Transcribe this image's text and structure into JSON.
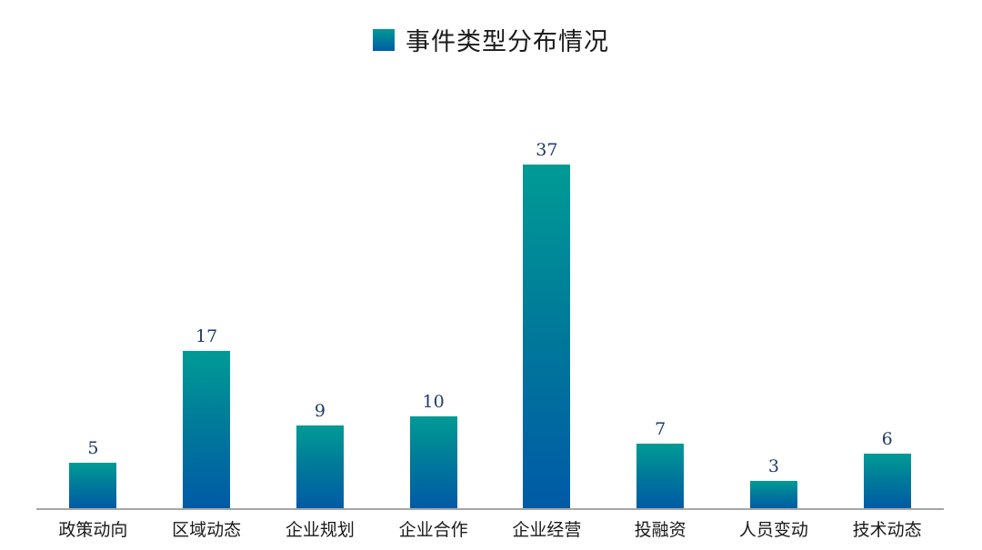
{
  "chart_data": {
    "type": "bar",
    "title": "",
    "legend": [
      "事件类型分布情况"
    ],
    "legend_position": "top",
    "categories": [
      "政策动向",
      "区域动态",
      "企业规划",
      "企业合作",
      "企业经营",
      "投融资",
      "人员变动",
      "技术动态"
    ],
    "series": [
      {
        "name": "事件类型分布情况",
        "values": [
          5,
          17,
          9,
          10,
          37,
          7,
          3,
          6
        ]
      }
    ],
    "values": [
      5,
      17,
      9,
      10,
      37,
      7,
      3,
      6
    ],
    "data_labels": [
      "5",
      "17",
      "9",
      "10",
      "37",
      "7",
      "3",
      "6"
    ],
    "xlabel": "",
    "ylabel": "",
    "ylim": [
      0,
      37
    ],
    "grid": false,
    "bar_gradient": [
      "#009b95",
      "#005aa6"
    ],
    "label_color": "#1f3a6b",
    "axis_color": "#a6a6a6"
  },
  "legend": {
    "label": "事件类型分布情况"
  }
}
